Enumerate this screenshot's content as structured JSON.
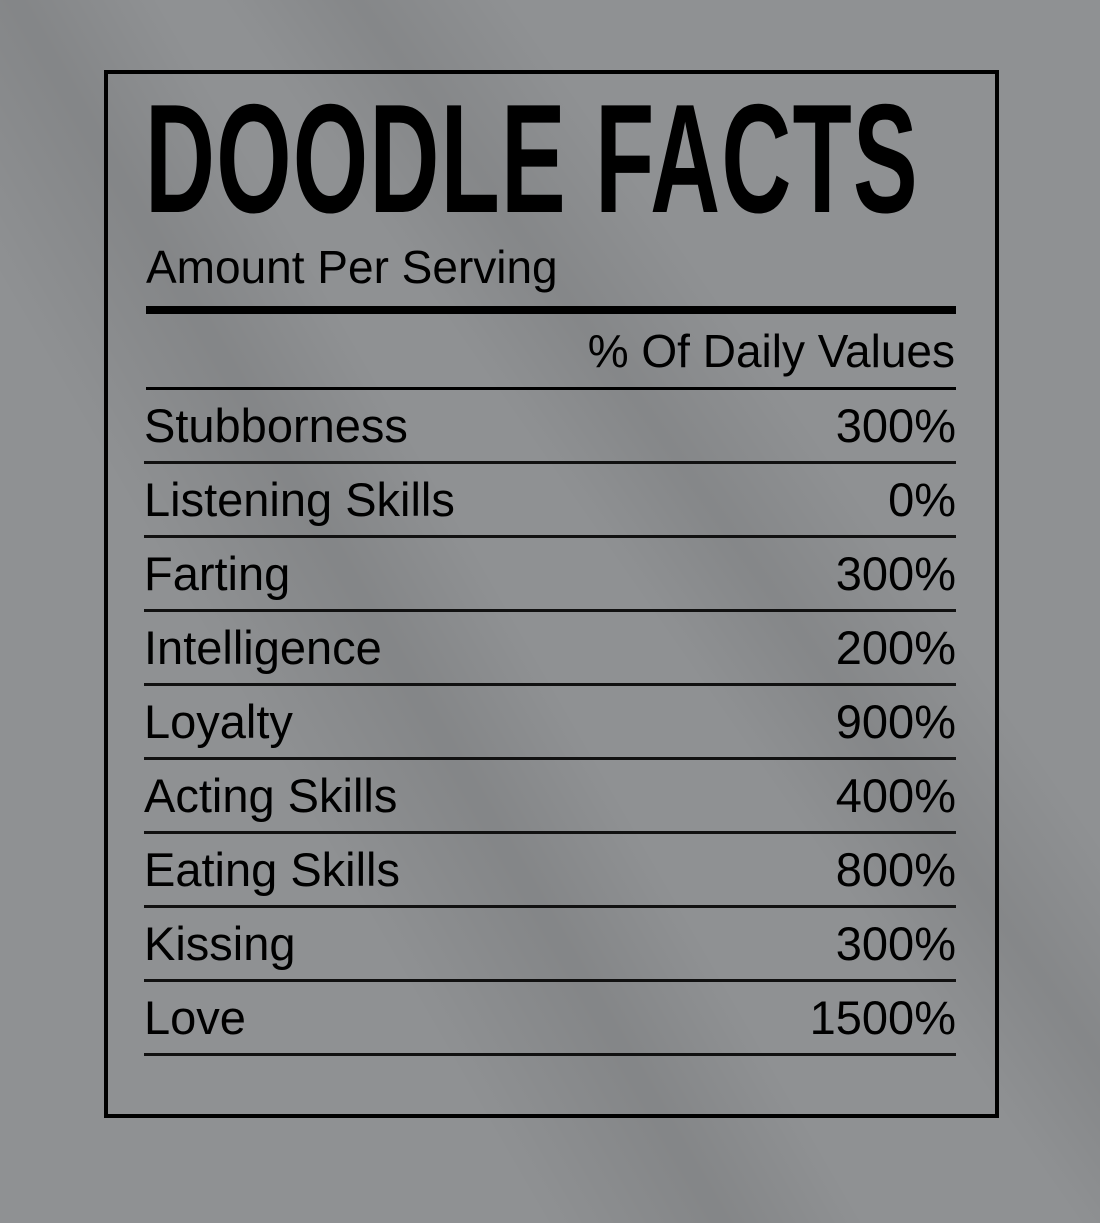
{
  "label": {
    "title": "DOODLE FACTS",
    "subtitle": "Amount Per Serving",
    "column_header": "% Of Daily Values",
    "rows": [
      {
        "name": "Stubborness",
        "value": "300%"
      },
      {
        "name": "Listening Skills",
        "value": "0%"
      },
      {
        "name": "Farting",
        "value": "300%"
      },
      {
        "name": "Intelligence",
        "value": "200%"
      },
      {
        "name": "Loyalty",
        "value": "900%"
      },
      {
        "name": "Acting Skills",
        "value": "400%"
      },
      {
        "name": "Eating Skills",
        "value": "800%"
      },
      {
        "name": "Kissing",
        "value": "300%"
      },
      {
        "name": "Love",
        "value": "1500%"
      }
    ]
  },
  "colors": {
    "background": "#8f9193",
    "ink": "#000000"
  }
}
